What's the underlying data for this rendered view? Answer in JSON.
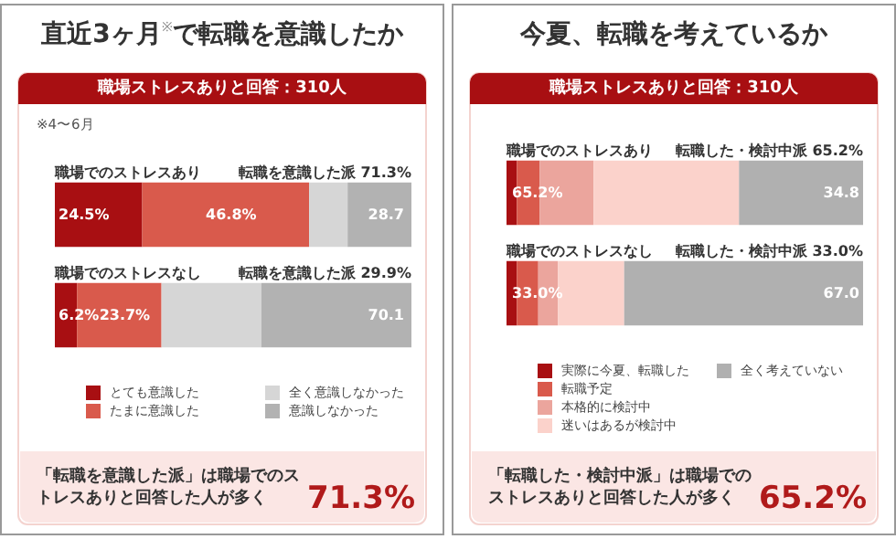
{
  "chart_data": [
    {
      "type": "bar",
      "orientation": "horizontal",
      "stacked": true,
      "title": "直近3ヶ月$^{※}$で転職を意識したか",
      "subtitle": "職場ストレスありと回答：310人",
      "categories": [
        "職場でのストレスあり",
        "職場でのストレスなし"
      ],
      "xlim": [
        0,
        100
      ],
      "tick_labels": "y",
      "legend": "bottom",
      "series": [
        {
          "name": "とても意識した",
          "color": "#a80f12",
          "values": [
            24.5,
            6.2
          ],
          "value_labels": [
            "24.5%",
            "6.2%"
          ]
        },
        {
          "name": "たまに意識した",
          "color": "#d95a4c",
          "values": [
            46.8,
            23.7
          ],
          "value_labels": [
            "46.8%",
            "23.7%"
          ]
        },
        {
          "name": "全く意識しなかった",
          "color": "#d6d6d6",
          "values": [
            10.8,
            28.0
          ]
        },
        {
          "name": "意識しなかった",
          "color": "#b2b2b2",
          "values": [
            17.9,
            42.1
          ]
        }
      ],
      "annotations": [
        "※4〜6月",
        "転職を意識した派 71.3%",
        "転職を意識した派 29.9%",
        "28.7",
        "70.1",
        "「転職を意識した派」は職場でのストレスありと回答した人が多く",
        "71.3%"
      ]
    },
    {
      "type": "bar",
      "orientation": "horizontal",
      "stacked": true,
      "title": "今夏、転職を考えているか",
      "subtitle": "職場ストレスありと回答：310人",
      "categories": [
        "職場でのストレスあり",
        "職場でのストレスなし"
      ],
      "xlim": [
        0,
        100
      ],
      "tick_labels": "y",
      "legend": "bottom",
      "series": [
        {
          "name": "実際に今夏、転職した",
          "color": "#a80f12",
          "values": [
            2.9,
            2.9
          ]
        },
        {
          "name": "転職予定",
          "color": "#d95a4c",
          "values": [
            6.4,
            6.0
          ]
        },
        {
          "name": "本格的に検討中",
          "color": "#eba59d",
          "values": [
            15.1,
            5.5
          ]
        },
        {
          "name": "迷いはあるが検討中",
          "color": "#fbd2cb",
          "values": [
            40.8,
            18.6
          ]
        },
        {
          "name": "全く考えていない",
          "color": "#b0b0b0",
          "values": [
            34.8,
            67.0
          ],
          "value_labels": [
            "34.8",
            "67.0"
          ]
        }
      ],
      "annotations": [
        "転職した・検討中派 65.2%",
        "転職した・検討中派 33.0%",
        "65.2%",
        "33.0%",
        "「転職した・検討中派」は職場でのストレスありと回答した人が多く",
        "65.2%"
      ]
    }
  ]
}
